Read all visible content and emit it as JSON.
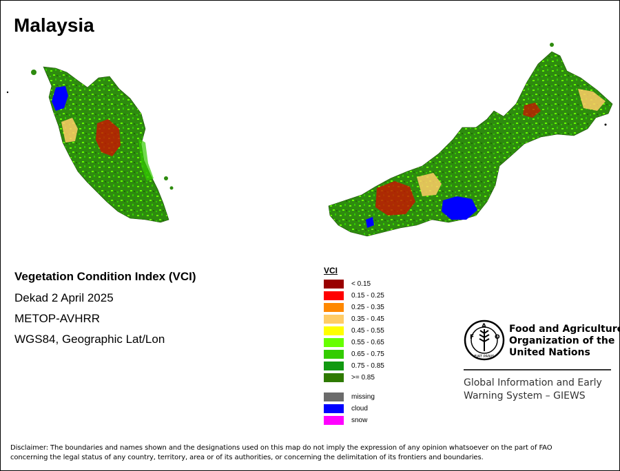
{
  "map": {
    "title": "Malaysia"
  },
  "info": {
    "title": "Vegetation Condition Index (VCI)",
    "dekad": "Dekad 2 April 2025",
    "sensor": "METOP-AVHRR",
    "projection": "WGS84, Geographic Lat/Lon"
  },
  "legend": {
    "title": "VCI",
    "classes": [
      {
        "label": "< 0.15",
        "color": "#990000"
      },
      {
        "label": "0.15 - 0.25",
        "color": "#ff0000"
      },
      {
        "label": "0.25 - 0.35",
        "color": "#ff8800"
      },
      {
        "label": "0.35 - 0.45",
        "color": "#ffcc66"
      },
      {
        "label": "0.45 - 0.55",
        "color": "#ffff00"
      },
      {
        "label": "0.55 - 0.65",
        "color": "#66ff00"
      },
      {
        "label": "0.65 - 0.75",
        "color": "#33cc00"
      },
      {
        "label": "0.75 - 0.85",
        "color": "#119911"
      },
      {
        "label": ">= 0.85",
        "color": "#2e7a00"
      }
    ],
    "special": [
      {
        "label": "missing",
        "color": "#6b6b6b"
      },
      {
        "label": "cloud",
        "color": "#0000ff"
      },
      {
        "label": "snow",
        "color": "#ff00ff"
      }
    ]
  },
  "fao": {
    "org_lines": [
      "Food and Agriculture",
      "Organization of the",
      "United Nations"
    ],
    "logo_text": "FIAT PANIS",
    "giews_lines": [
      "Global Information and Early",
      "Warning System – GIEWS"
    ]
  },
  "disclaimer": {
    "lines": [
      "Disclaimer: The boundaries and names shown and the designations used on this map do not imply the expression of any opinion whatsoever on the part of FAO",
      "concerning the legal status of any country, territory, area or of its authorities, or concerning the delimitation of its frontiers and boundaries."
    ]
  }
}
